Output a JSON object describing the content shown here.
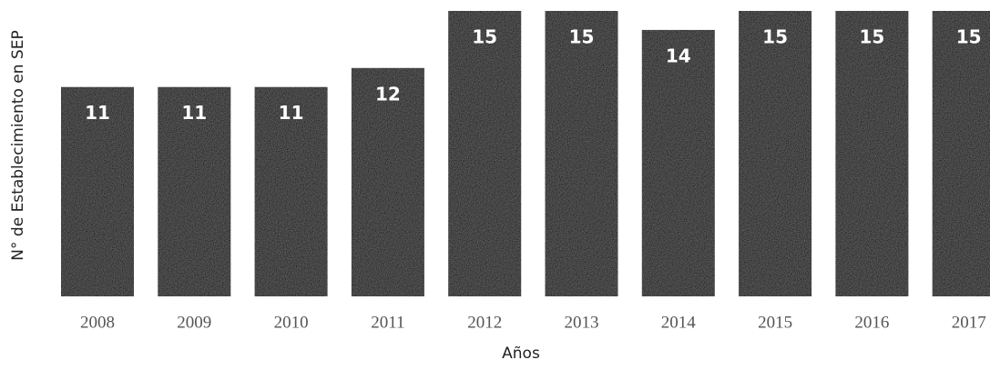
{
  "chart_data": {
    "type": "bar",
    "y_label": "N° de Establecimiento en SEP",
    "x_label": "Años",
    "categories": [
      "2008",
      "2009",
      "2010",
      "2011",
      "2012",
      "2013",
      "2014",
      "2015",
      "2016",
      "2017"
    ],
    "values": [
      11,
      11,
      11,
      12,
      15,
      15,
      14,
      15,
      15,
      15
    ],
    "color": "#0a0a0a"
  }
}
